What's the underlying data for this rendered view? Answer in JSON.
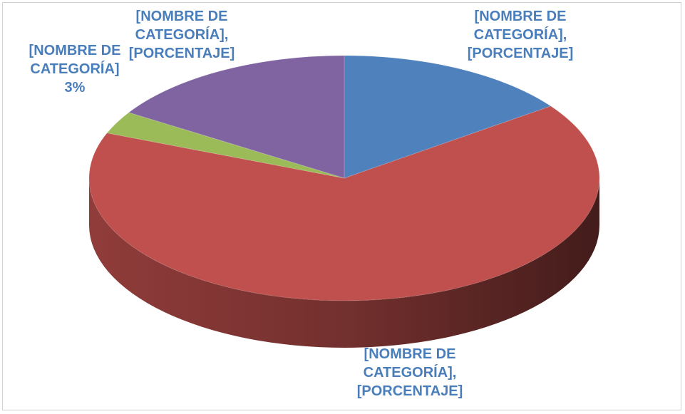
{
  "chart_data": {
    "type": "pie",
    "categories": [
      "[NOMBRE DE CATEGORÍA],",
      "[NOMBRE DE CATEGORÍA],",
      "[NOMBRE DE CATEGORÍA]",
      "[NOMBRE DE CATEGORÍA],"
    ],
    "values": [
      15,
      66,
      3,
      16
    ],
    "value_labels": [
      "[PORCENTAJE]",
      "[PORCENTAJE]",
      "3%",
      "[PORCENTAJE]"
    ],
    "colors": [
      "#4f81bd",
      "#c0504d",
      "#9bbb59",
      "#8064a2"
    ]
  }
}
